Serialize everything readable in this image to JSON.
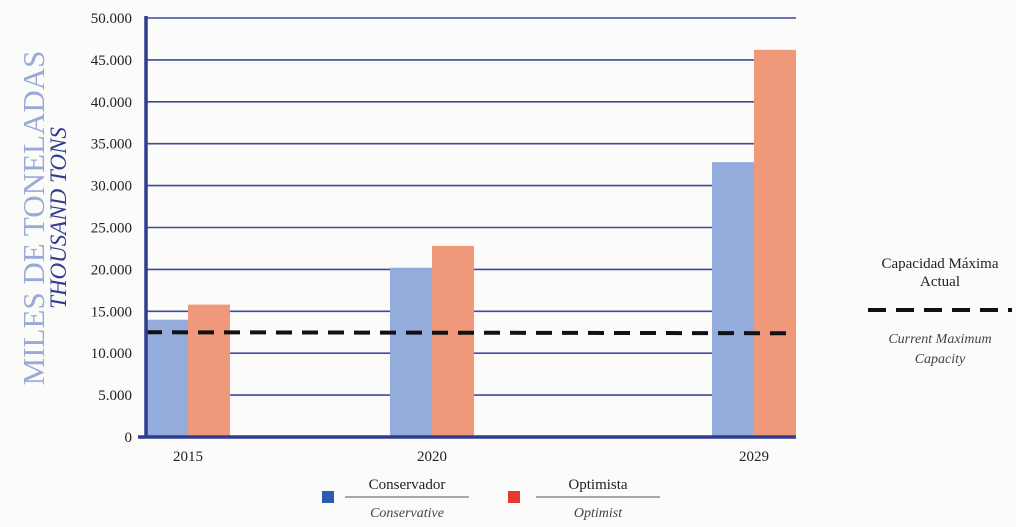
{
  "chart_data": {
    "type": "bar",
    "categories": [
      "2015",
      "2020",
      "2029"
    ],
    "series": [
      {
        "name": "Conservador",
        "name_en": "Conservative",
        "values": [
          14000,
          20200,
          32800
        ],
        "color": "#93acdc"
      },
      {
        "name": "Optimista",
        "name_en": "Optimist",
        "values": [
          15800,
          22800,
          46200
        ],
        "color": "#f0987a"
      }
    ],
    "ylabel": "MILES DE TONELADAS",
    "ylabel_en": "THOUSAND TONS",
    "ylim": [
      0,
      50000
    ],
    "yticks": [
      "0",
      "5.000",
      "10.000",
      "15.000",
      "20.000",
      "25.000",
      "30.000",
      "35.000",
      "40.000",
      "45.000",
      "50.000"
    ],
    "ytick_values": [
      0,
      5000,
      10000,
      15000,
      20000,
      25000,
      30000,
      35000,
      40000,
      45000,
      50000
    ],
    "grid": true,
    "reference_line": {
      "value": 12500,
      "label": "Capacidad Máxima Actual",
      "label_line1": "Capacidad Máxima",
      "label_line2": "Actual",
      "label_en_line1": "Current Maximum",
      "label_en_line2": "Capacity",
      "color": "#111111"
    },
    "legend_position": "bottom-center",
    "colors": {
      "axis": "#2f3c8f",
      "grid": "#3d4aa0",
      "ylabel": "#9aaad8",
      "ylabel_en": "#2f3c8f",
      "legend_square_blue": "#2d5bb0",
      "legend_square_red": "#e53a2b",
      "text": "#222222"
    }
  }
}
